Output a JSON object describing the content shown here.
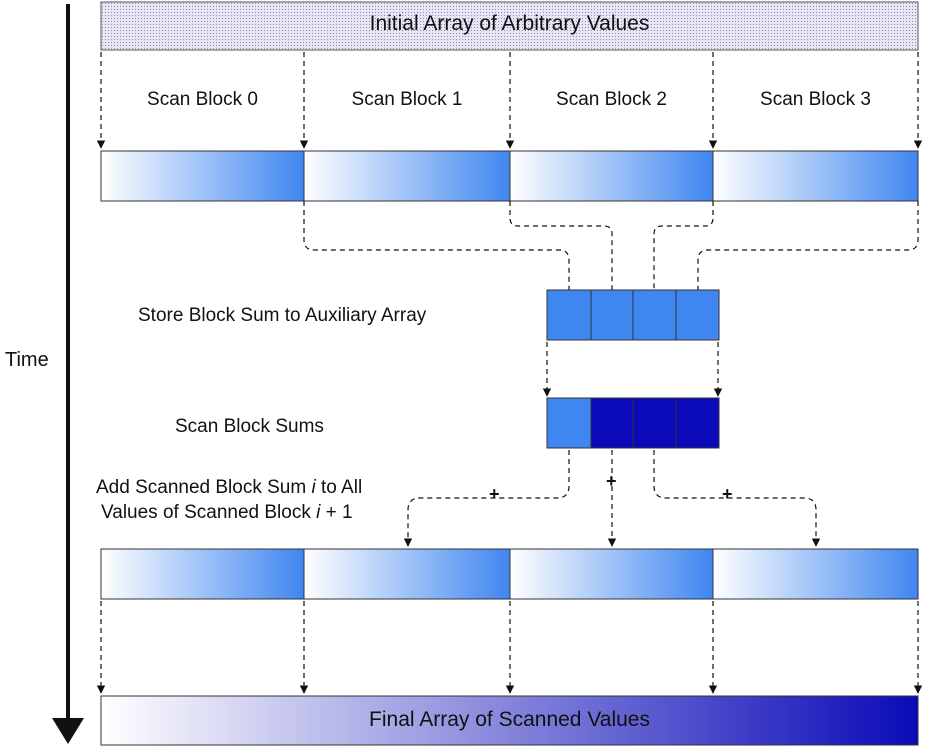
{
  "time_label": "Time",
  "initial_array_label": "Initial Array of Arbitrary Values",
  "scan_blocks": [
    "Scan Block 0",
    "Scan Block 1",
    "Scan Block 2",
    "Scan Block 3"
  ],
  "store_label": "Store Block Sum to Auxiliary Array",
  "scan_sums_label": "Scan Block Sums",
  "add_label": {
    "line1_prefix": "Add Scanned Block Sum ",
    "var": "i",
    "line1_suffix": " to All",
    "line2_prefix": "Values of Scanned Block ",
    "line2_suffix": " + 1"
  },
  "plus_symbol": "+",
  "final_array_label": "Final Array of Scanned Values",
  "colors": {
    "block_gradient_start": "#ffffff",
    "block_gradient_end": "#3f86f0",
    "aux_block": "#3f86f0",
    "scanned_sum_dark": "#0a0ab8",
    "final_gradient_start": "#ffffff",
    "final_gradient_end": "#0a0ab8",
    "initial_array_fill": "#dcdcf0"
  }
}
